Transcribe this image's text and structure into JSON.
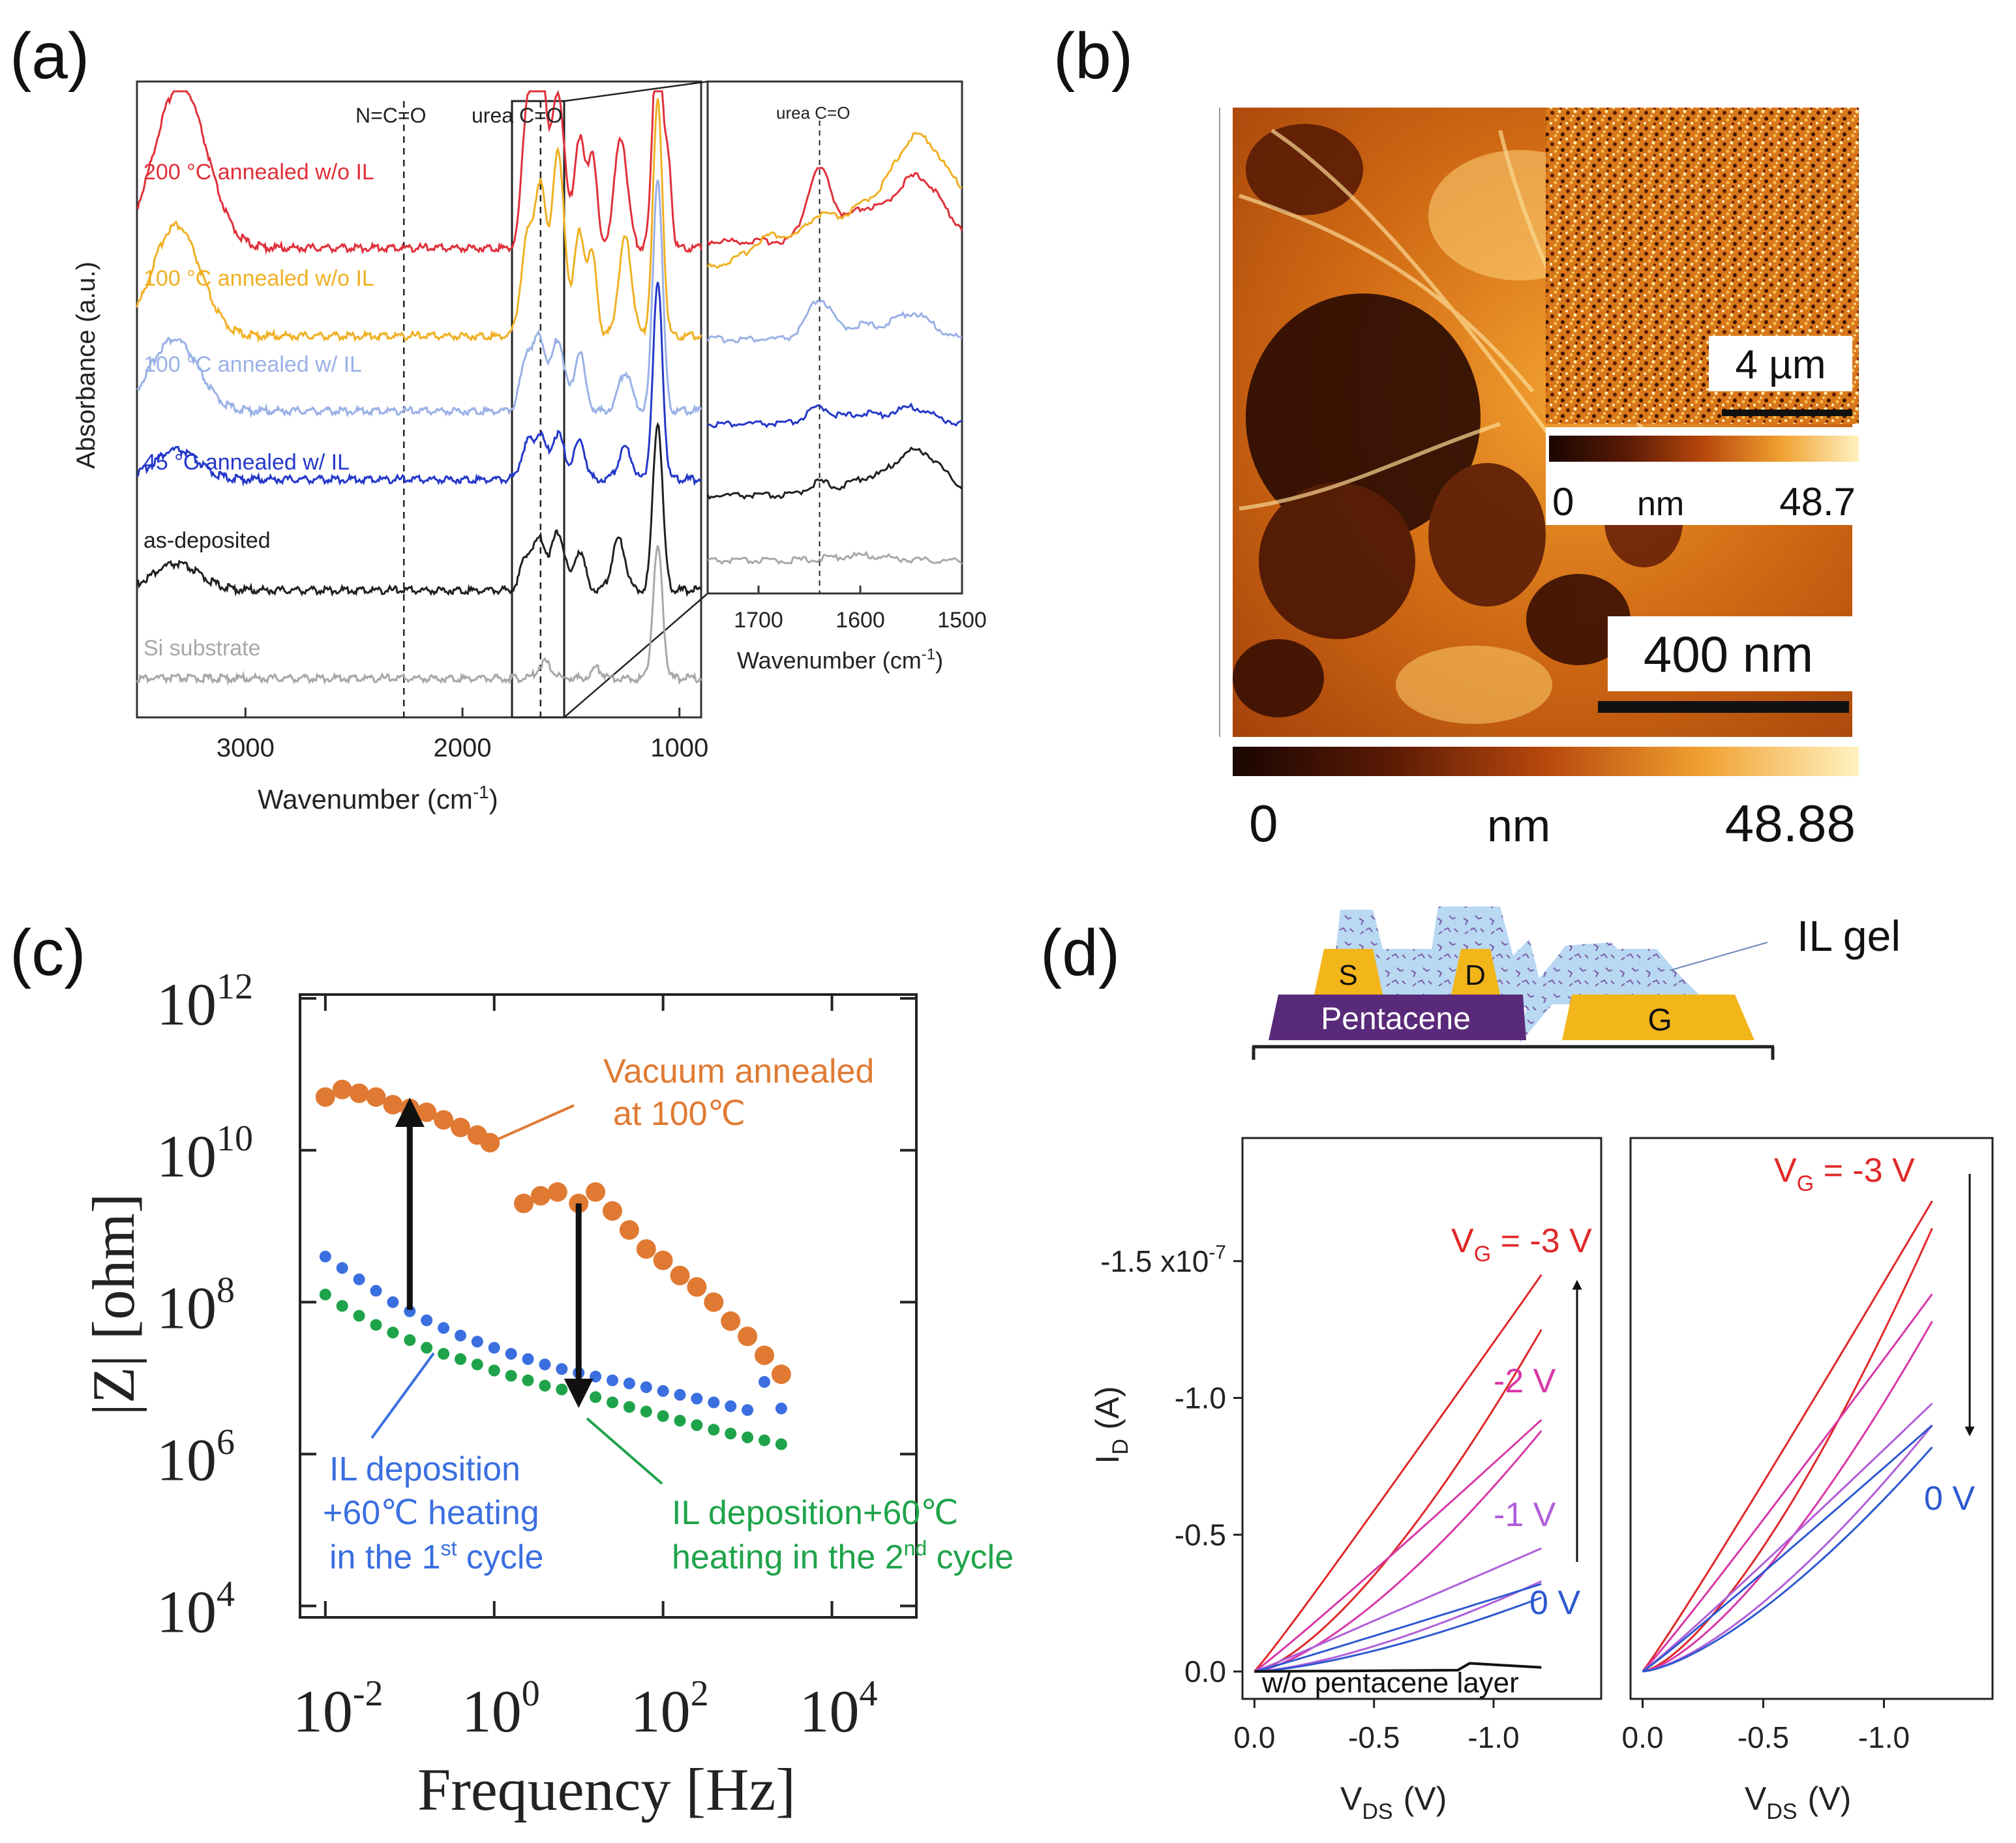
{
  "panels": {
    "a": "(a)",
    "b": "(b)",
    "c": "(c)",
    "d": "(d)"
  },
  "chart_data": [
    {
      "id": "a_main",
      "type": "line",
      "title": "",
      "xlabel": "Wavenumber (cm",
      "xlabel_sup": "-1",
      "xlabel_close": ")",
      "ylabel": "Absorbance (a.u.)",
      "xlim": [
        3500,
        900
      ],
      "xticks": [
        "3000",
        "2000",
        "1000"
      ],
      "xtick_values": [
        3000,
        2000,
        1000
      ],
      "annotations": {
        "nco": "N=C=O",
        "urea": "urea C=O"
      },
      "marker_lines": [
        2270,
        1640
      ],
      "series": [
        {
          "name": "200 °C annealed w/o IL",
          "color": "#e0303a",
          "bands": [
            [
              3300,
              120,
              250
            ],
            [
              1700,
              25,
              220
            ],
            [
              1640,
              25,
              300
            ],
            [
              1560,
              30,
              240
            ],
            [
              1460,
              25,
              170
            ],
            [
              1400,
              20,
              140
            ],
            [
              1270,
              30,
              170
            ],
            [
              1100,
              22,
              360
            ],
            [
              1050,
              15,
              120
            ]
          ]
        },
        {
          "name": "100 °C annealed w/o IL",
          "color": "#f0b024",
          "bands": [
            [
              3320,
              110,
              170
            ],
            [
              1700,
              30,
              150
            ],
            [
              1640,
              25,
              210
            ],
            [
              1560,
              30,
              280
            ],
            [
              1460,
              25,
              160
            ],
            [
              1400,
              20,
              120
            ],
            [
              1250,
              30,
              150
            ],
            [
              1100,
              22,
              360
            ]
          ]
        },
        {
          "name": "100 °C annealed w/ IL",
          "color": "#9ab1e6",
          "bands": [
            [
              3330,
              110,
              110
            ],
            [
              1700,
              30,
              90
            ],
            [
              1640,
              25,
              100
            ],
            [
              1560,
              30,
              110
            ],
            [
              1460,
              25,
              90
            ],
            [
              1250,
              30,
              60
            ],
            [
              1100,
              22,
              360
            ]
          ]
        },
        {
          "name": "45 °C annealed w/ IL",
          "color": "#2438c8",
          "bands": [
            [
              3320,
              100,
              45
            ],
            [
              1700,
              30,
              55
            ],
            [
              1640,
              25,
              60
            ],
            [
              1560,
              30,
              70
            ],
            [
              1460,
              25,
              60
            ],
            [
              1250,
              30,
              50
            ],
            [
              1100,
              22,
              300
            ]
          ]
        },
        {
          "name": "as-deposited",
          "color": "#202020",
          "bands": [
            [
              3320,
              110,
              40
            ],
            [
              1700,
              30,
              55
            ],
            [
              1640,
              25,
              70
            ],
            [
              1560,
              30,
              90
            ],
            [
              1460,
              25,
              60
            ],
            [
              1280,
              30,
              80
            ],
            [
              1100,
              22,
              260
            ]
          ]
        },
        {
          "name": "Si substrate",
          "color": "#a8a8a8",
          "bands": [
            [
              1620,
              30,
              25
            ],
            [
              1380,
              25,
              15
            ],
            [
              1100,
              22,
              200
            ]
          ]
        }
      ]
    },
    {
      "id": "a_inset",
      "type": "line",
      "title": "urea C=O",
      "xlabel": "Wavenumber (cm",
      "xlabel_sup": "-1",
      "xlabel_close": ")",
      "xlim": [
        1750,
        1500
      ],
      "xticks": [
        "1700",
        "1600",
        "1500"
      ],
      "xtick_values": [
        1700,
        1600,
        1500
      ],
      "marker_lines": [
        1640
      ],
      "series": [
        {
          "name": "200 °C annealed w/o IL",
          "color": "#e0303a",
          "bands": [
            [
              1640,
              12,
              110
            ],
            [
              1600,
              15,
              40
            ],
            [
              1545,
              25,
              100
            ]
          ]
        },
        {
          "name": "100 °C annealed w/o IL",
          "color": "#f0b024",
          "bands": [
            [
              1690,
              15,
              25
            ],
            [
              1640,
              15,
              35
            ],
            [
              1600,
              15,
              25
            ],
            [
              1545,
              25,
              120
            ]
          ]
        },
        {
          "name": "100 °C annealed w/ IL",
          "color": "#9ab1e6",
          "bands": [
            [
              1640,
              12,
              60
            ],
            [
              1600,
              15,
              20
            ],
            [
              1550,
              20,
              40
            ]
          ]
        },
        {
          "name": "45 °C annealed w/ IL",
          "color": "#2438c8",
          "bands": [
            [
              1640,
              12,
              25
            ],
            [
              1600,
              15,
              15
            ],
            [
              1550,
              20,
              25
            ]
          ]
        },
        {
          "name": "as-deposited",
          "color": "#202020",
          "bands": [
            [
              1640,
              12,
              20
            ],
            [
              1600,
              15,
              20
            ],
            [
              1545,
              25,
              70
            ]
          ]
        },
        {
          "name": "Si substrate",
          "color": "#a8a8a8",
          "bands": [
            [
              1600,
              30,
              8
            ]
          ]
        }
      ]
    },
    {
      "id": "c",
      "type": "scatter",
      "title": "",
      "xlabel": "Frequency [Hz]",
      "ylabel": "|Z| [ohm]",
      "xscale": "log",
      "yscale": "log",
      "xlim_exp": [
        -2.3,
        5.0
      ],
      "ylim_exp": [
        3.85,
        12.05
      ],
      "xticks": [
        {
          "base": "10",
          "exp": "-2"
        },
        {
          "base": "10",
          "exp": "0"
        },
        {
          "base": "10",
          "exp": "2"
        },
        {
          "base": "10",
          "exp": "4"
        }
      ],
      "xtick_exps": [
        -2,
        0,
        2,
        4
      ],
      "yticks": [
        {
          "base": "10",
          "exp": "4"
        },
        {
          "base": "10",
          "exp": "6"
        },
        {
          "base": "10",
          "exp": "8"
        },
        {
          "base": "10",
          "exp": "10"
        },
        {
          "base": "10",
          "exp": "12"
        }
      ],
      "ytick_exps": [
        4,
        6,
        8,
        10,
        12
      ],
      "series": [
        {
          "name": "Vacuum annealed at 100℃",
          "color": "#e07a33",
          "log_f": [
            -2.0,
            -1.8,
            -1.6,
            -1.4,
            -1.2,
            -1.0,
            -0.8,
            -0.6,
            -0.4,
            -0.2,
            -0.05,
            0.35,
            0.55,
            0.75,
            1.0,
            1.2,
            1.4,
            1.6,
            1.8,
            2.0,
            2.2,
            2.4,
            2.6,
            2.8,
            3.0,
            3.2,
            3.4
          ],
          "log_z": [
            10.7,
            10.8,
            10.75,
            10.7,
            10.6,
            10.55,
            10.5,
            10.4,
            10.3,
            10.2,
            10.1,
            9.3,
            9.4,
            9.45,
            9.3,
            9.45,
            9.2,
            8.95,
            8.7,
            8.55,
            8.35,
            8.2,
            8.0,
            7.75,
            7.55,
            7.3,
            7.05
          ]
        },
        {
          "name": "IL deposition +60℃ heating in the 1st cycle",
          "color": "#3b6fe0",
          "log_f": [
            -2.0,
            -1.8,
            -1.6,
            -1.4,
            -1.2,
            -1.0,
            -0.8,
            -0.6,
            -0.4,
            -0.2,
            0.0,
            0.2,
            0.4,
            0.6,
            0.8,
            1.0,
            1.2,
            1.4,
            1.6,
            1.8,
            2.0,
            2.2,
            2.4,
            2.6,
            2.8,
            3.0,
            3.2,
            3.4
          ],
          "log_z": [
            8.6,
            8.45,
            8.3,
            8.15,
            8.0,
            7.88,
            7.76,
            7.66,
            7.56,
            7.48,
            7.4,
            7.32,
            7.25,
            7.18,
            7.12,
            7.07,
            7.02,
            6.97,
            6.93,
            6.88,
            6.83,
            6.78,
            6.73,
            6.68,
            6.63,
            6.58,
            6.95,
            6.6
          ]
        },
        {
          "name": "IL deposition+60℃ heating in the 2nd cycle",
          "color": "#1fa34a",
          "log_f": [
            -2.0,
            -1.8,
            -1.6,
            -1.4,
            -1.2,
            -1.0,
            -0.8,
            -0.6,
            -0.4,
            -0.2,
            0.0,
            0.2,
            0.4,
            0.6,
            0.8,
            1.0,
            1.2,
            1.4,
            1.6,
            1.8,
            2.0,
            2.2,
            2.4,
            2.6,
            2.8,
            3.0,
            3.2,
            3.4
          ],
          "log_z": [
            8.1,
            7.95,
            7.82,
            7.7,
            7.6,
            7.5,
            7.4,
            7.32,
            7.25,
            7.18,
            7.1,
            7.03,
            6.97,
            6.9,
            6.85,
            6.8,
            6.75,
            6.68,
            6.62,
            6.56,
            6.5,
            6.44,
            6.38,
            6.32,
            6.27,
            6.22,
            6.18,
            6.13
          ]
        }
      ],
      "labels": {
        "vac_1": "Vacuum annealed",
        "vac_2": "at 100℃",
        "blue_1": "IL deposition",
        "blue_2": "+60℃ heating",
        "blue_3a": "in the 1",
        "blue_3sup": "st",
        "blue_3b": " cycle",
        "green_1": "IL deposition+60℃",
        "green_2a": "heating in the 2",
        "green_2sup": "nd",
        "green_2b": " cycle"
      },
      "arrows": [
        {
          "log_f": -1.0,
          "from": 7.9,
          "to": 10.5
        },
        {
          "log_f": 1.0,
          "from": 9.3,
          "to": 6.8
        }
      ]
    },
    {
      "id": "d_left",
      "type": "line",
      "xlabel": "V",
      "xlabel_sub": "DS",
      "xlabel_unit": "(V)",
      "ylabel": "I",
      "ylabel_sub": "D",
      "ylabel_unit": "(A)",
      "xlim": [
        0.05,
        -1.45
      ],
      "ylim": [
        0.1,
        -1.95
      ],
      "xticks": [
        "0.0",
        "-0.5",
        "-1.0"
      ],
      "xtick_values": [
        0.0,
        -0.5,
        -1.0
      ],
      "yticks": [
        "0.0",
        "-0.5",
        "-1.0",
        "-1.5 x10"
      ],
      "ytick_sup": "-7",
      "ytick_values": [
        0.0,
        -0.5,
        -1.0,
        -1.5
      ],
      "loops": [
        {
          "label": "V",
          "label_sub": "G",
          "label_rest": " = -3 V",
          "color": "#e02828",
          "end": -1.2,
          "up": -1.45,
          "down": -1.25
        },
        {
          "label": "-2 V",
          "color": "#d838a8",
          "end": -1.2,
          "up": -0.92,
          "down": -0.88
        },
        {
          "label": "-1 V",
          "color": "#b05ed8",
          "end": -1.2,
          "up": -0.45,
          "down": -0.33
        },
        {
          "label": "0 V",
          "color": "#2d58d0",
          "end": -1.2,
          "up": -0.32,
          "down": -0.27
        }
      ],
      "flat_line_label": "w/o pentacene layer"
    },
    {
      "id": "d_right",
      "type": "line",
      "xlabel": "V",
      "xlabel_sub": "DS",
      "xlabel_unit": "(V)",
      "xlim": [
        0.05,
        -1.45
      ],
      "ylim": [
        0.1,
        -1.95
      ],
      "xticks": [
        "0.0",
        "-0.5",
        "-1.0"
      ],
      "xtick_values": [
        0.0,
        -0.5,
        -1.0
      ],
      "loops": [
        {
          "label": "V",
          "label_sub": "G",
          "label_rest": " = -3 V",
          "color": "#e02828",
          "end": -1.2,
          "up": -1.72,
          "down": -1.62
        },
        {
          "label": "",
          "color": "#d838a8",
          "end": -1.2,
          "up": -1.38,
          "down": -1.28
        },
        {
          "label": "",
          "color": "#b05ed8",
          "end": -1.2,
          "up": -0.98,
          "down": -0.9
        },
        {
          "label": "0 V",
          "color": "#2d58d0",
          "end": -1.2,
          "up": -0.9,
          "down": -0.82
        }
      ]
    }
  ],
  "afm": {
    "scale_main": "400 nm",
    "scale_inset": "4 µm",
    "cbar_main_min": "0",
    "cbar_main_unit": "nm",
    "cbar_main_max": "48.88",
    "cbar_inset_min": "0",
    "cbar_inset_unit": "nm",
    "cbar_inset_max": "48.7"
  },
  "device": {
    "source": "S",
    "drain": "D",
    "gate": "G",
    "semiconductor": "Pentacene",
    "electrolyte": "IL gel"
  }
}
